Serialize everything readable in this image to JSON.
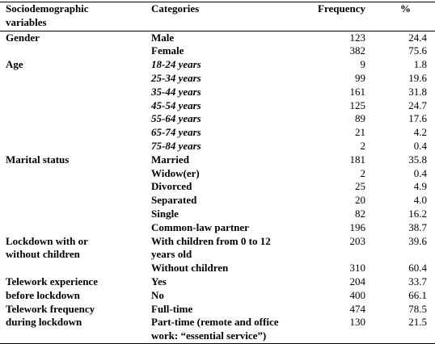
{
  "table": {
    "header": [
      "Sociodemographic variables",
      "Categories",
      "Frequency",
      "%"
    ],
    "groups": [
      {
        "variable": "Gender",
        "rows": [
          {
            "category": "Male",
            "frequency": 123,
            "percent": 24.4
          },
          {
            "category": "Female",
            "frequency": 382,
            "percent": 75.6
          }
        ]
      },
      {
        "variable": "Age",
        "italic": true,
        "rows": [
          {
            "category": "18-24 years",
            "frequency": 9,
            "percent": 1.8
          },
          {
            "category": "25-34 years",
            "frequency": 99,
            "percent": 19.6
          },
          {
            "category": "35-44 years",
            "frequency": 161,
            "percent": 31.8
          },
          {
            "category": "45-54 years",
            "frequency": 125,
            "percent": 24.7
          },
          {
            "category": "55-64 years",
            "frequency": 89,
            "percent": 17.6
          },
          {
            "category": "65-74 years",
            "frequency": 21,
            "percent": 4.2
          },
          {
            "category": "75-84 years",
            "frequency": 2,
            "percent": 0.4
          }
        ]
      },
      {
        "variable": "Marital status",
        "rows": [
          {
            "category": "Married",
            "frequency": 181,
            "percent": 35.8
          },
          {
            "category": "Widow(er)",
            "frequency": 2,
            "percent": 0.4
          },
          {
            "category": "Divorced",
            "frequency": 25,
            "percent": 4.9
          },
          {
            "category": "Separated",
            "frequency": 20,
            "percent": {
              "value": 4,
              "label": "4.0"
            }
          },
          {
            "category": "Single",
            "frequency": 82,
            "percent": 16.2
          },
          {
            "category": "Common-law partner",
            "frequency": 196,
            "percent": 38.7
          }
        ]
      },
      {
        "variable": "Lockdown with or without children",
        "rows": [
          {
            "category": "With children from 0 to 12 years old",
            "frequency": 203,
            "percent": 39.6
          },
          {
            "category": "Without children",
            "frequency": 310,
            "percent": 60.4
          }
        ]
      },
      {
        "variable": "Telework experience before lockdown",
        "rows": [
          {
            "category": "Yes",
            "frequency": 204,
            "percent": 33.7
          },
          {
            "category": "No",
            "frequency": 400,
            "percent": 66.1
          }
        ]
      },
      {
        "variable": "Telework frequency during lockdown",
        "rows": [
          {
            "category": "Full-time",
            "frequency": 474,
            "percent": 78.5
          },
          {
            "category": "Part-time (remote and office work: “essential service”)",
            "frequency": 130,
            "percent": 21.5
          }
        ]
      }
    ]
  }
}
